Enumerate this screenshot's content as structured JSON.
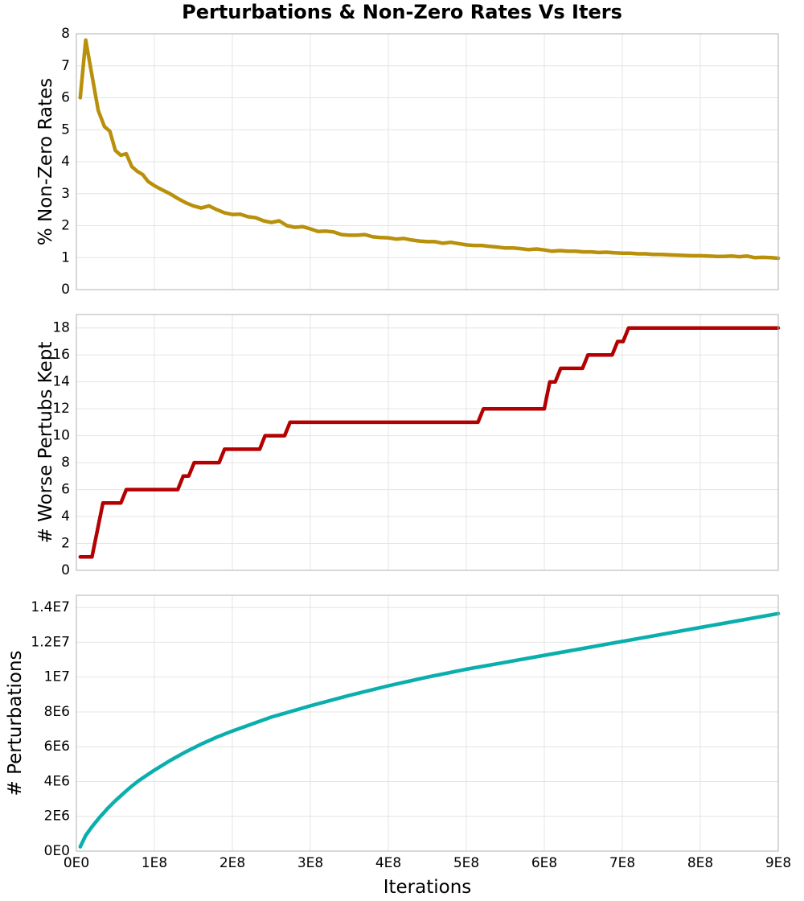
{
  "figure": {
    "title": "Perturbations & Non-Zero Rates Vs Iters"
  },
  "chart_data": [
    {
      "type": "line",
      "panel": "top",
      "title": "",
      "xlabel": "",
      "ylabel": "% Non-Zero Rates",
      "xlim": [
        0,
        900000000
      ],
      "ylim": [
        0,
        8
      ],
      "xticks": [
        0,
        100000000,
        200000000,
        300000000,
        400000000,
        500000000,
        600000000,
        700000000,
        800000000,
        900000000
      ],
      "xtick_labels": [],
      "yticks": [
        0,
        1,
        2,
        3,
        4,
        5,
        6,
        7,
        8
      ],
      "ytick_labels": [
        "0",
        "1",
        "2",
        "3",
        "4",
        "5",
        "6",
        "7",
        "8"
      ],
      "grid": true,
      "legend": "none",
      "series": [
        {
          "color": "#b8900a",
          "x": [
            5000000,
            12000000,
            20000000,
            28000000,
            36000000,
            43000000,
            50000000,
            57000000,
            64000000,
            71000000,
            78000000,
            85000000,
            92000000,
            100000000,
            110000000,
            120000000,
            130000000,
            140000000,
            150000000,
            160000000,
            170000000,
            180000000,
            190000000,
            200000000,
            210000000,
            220000000,
            230000000,
            240000000,
            250000000,
            260000000,
            270000000,
            280000000,
            290000000,
            300000000,
            310000000,
            320000000,
            330000000,
            340000000,
            350000000,
            360000000,
            370000000,
            380000000,
            390000000,
            400000000,
            410000000,
            420000000,
            430000000,
            440000000,
            450000000,
            460000000,
            470000000,
            480000000,
            490000000,
            500000000,
            510000000,
            520000000,
            530000000,
            540000000,
            550000000,
            560000000,
            570000000,
            580000000,
            590000000,
            600000000,
            610000000,
            620000000,
            630000000,
            640000000,
            650000000,
            660000000,
            670000000,
            680000000,
            690000000,
            700000000,
            710000000,
            720000000,
            730000000,
            740000000,
            750000000,
            760000000,
            770000000,
            780000000,
            790000000,
            800000000,
            810000000,
            820000000,
            830000000,
            840000000,
            850000000,
            860000000,
            870000000,
            880000000,
            890000000,
            900000000
          ],
          "y": [
            6.0,
            7.8,
            6.7,
            5.6,
            5.1,
            4.95,
            4.35,
            4.2,
            4.25,
            3.85,
            3.7,
            3.6,
            3.38,
            3.25,
            3.12,
            3.0,
            2.85,
            2.72,
            2.62,
            2.55,
            2.62,
            2.5,
            2.4,
            2.35,
            2.36,
            2.28,
            2.25,
            2.15,
            2.1,
            2.15,
            2.0,
            1.95,
            1.97,
            1.9,
            1.82,
            1.83,
            1.8,
            1.72,
            1.7,
            1.7,
            1.72,
            1.65,
            1.63,
            1.62,
            1.58,
            1.6,
            1.55,
            1.52,
            1.5,
            1.5,
            1.45,
            1.48,
            1.44,
            1.4,
            1.38,
            1.38,
            1.35,
            1.33,
            1.3,
            1.3,
            1.28,
            1.25,
            1.27,
            1.24,
            1.2,
            1.22,
            1.2,
            1.2,
            1.18,
            1.18,
            1.16,
            1.17,
            1.15,
            1.14,
            1.14,
            1.12,
            1.12,
            1.1,
            1.1,
            1.09,
            1.08,
            1.07,
            1.06,
            1.06,
            1.05,
            1.04,
            1.04,
            1.05,
            1.03,
            1.05,
            1.0,
            1.01,
            1.0,
            0.98
          ]
        }
      ]
    },
    {
      "type": "line",
      "panel": "middle",
      "title": "",
      "xlabel": "",
      "ylabel": "# Worse Pertubs Kept",
      "xlim": [
        0,
        900000000
      ],
      "ylim": [
        0,
        19
      ],
      "xticks": [
        0,
        100000000,
        200000000,
        300000000,
        400000000,
        500000000,
        600000000,
        700000000,
        800000000,
        900000000
      ],
      "xtick_labels": [],
      "yticks": [
        0,
        2,
        4,
        6,
        8,
        10,
        12,
        14,
        16,
        18
      ],
      "ytick_labels": [
        "0",
        "2",
        "4",
        "6",
        "8",
        "10",
        "12",
        "14",
        "16",
        "18"
      ],
      "grid": true,
      "legend": "none",
      "series": [
        {
          "color": "#b30000",
          "x": [
            5000000,
            20000000,
            34000000,
            57000000,
            64000000,
            130000000,
            137000000,
            144000000,
            151000000,
            183000000,
            190000000,
            235000000,
            242000000,
            267000000,
            274000000,
            515000000,
            522000000,
            600000000,
            607000000,
            614000000,
            621000000,
            649000000,
            656000000,
            687000000,
            694000000,
            701000000,
            708000000,
            900000000
          ],
          "y": [
            1,
            1,
            5,
            5,
            6,
            6,
            7,
            7,
            8,
            8,
            9,
            9,
            10,
            10,
            11,
            11,
            12,
            12,
            14,
            14,
            15,
            15,
            16,
            16,
            17,
            17,
            18,
            18
          ]
        }
      ]
    },
    {
      "type": "line",
      "panel": "bottom",
      "title": "",
      "xlabel": "Iterations",
      "ylabel": "# Perturbations",
      "xlim": [
        0,
        900000000
      ],
      "ylim": [
        0,
        14700000
      ],
      "xticks": [
        0,
        100000000,
        200000000,
        300000000,
        400000000,
        500000000,
        600000000,
        700000000,
        800000000,
        900000000
      ],
      "xtick_labels": [
        "0E0",
        "1E8",
        "2E8",
        "3E8",
        "4E8",
        "5E8",
        "6E8",
        "7E8",
        "8E8",
        "9E8"
      ],
      "yticks": [
        0,
        2000000,
        4000000,
        6000000,
        8000000,
        10000000,
        12000000,
        14000000
      ],
      "ytick_labels": [
        "0E0",
        "2E6",
        "4E6",
        "6E6",
        "8E6",
        "1E7",
        "1.2E7",
        "1.4E7"
      ],
      "grid": true,
      "legend": "none",
      "series": [
        {
          "color": "#0aaead",
          "x": [
            5000000,
            12000000,
            20000000,
            30000000,
            40000000,
            50000000,
            60000000,
            70000000,
            80000000,
            100000000,
            120000000,
            140000000,
            160000000,
            180000000,
            200000000,
            250000000,
            300000000,
            350000000,
            400000000,
            450000000,
            500000000,
            550000000,
            600000000,
            650000000,
            700000000,
            750000000,
            800000000,
            850000000,
            900000000
          ],
          "y": [
            250000,
            900000,
            1400000,
            1950000,
            2450000,
            2900000,
            3300000,
            3700000,
            4050000,
            4650000,
            5200000,
            5700000,
            6150000,
            6550000,
            6900000,
            7700000,
            8350000,
            8950000,
            9500000,
            10000000,
            10450000,
            10850000,
            11250000,
            11650000,
            12050000,
            12450000,
            12850000,
            13250000,
            13650000
          ]
        }
      ]
    }
  ]
}
